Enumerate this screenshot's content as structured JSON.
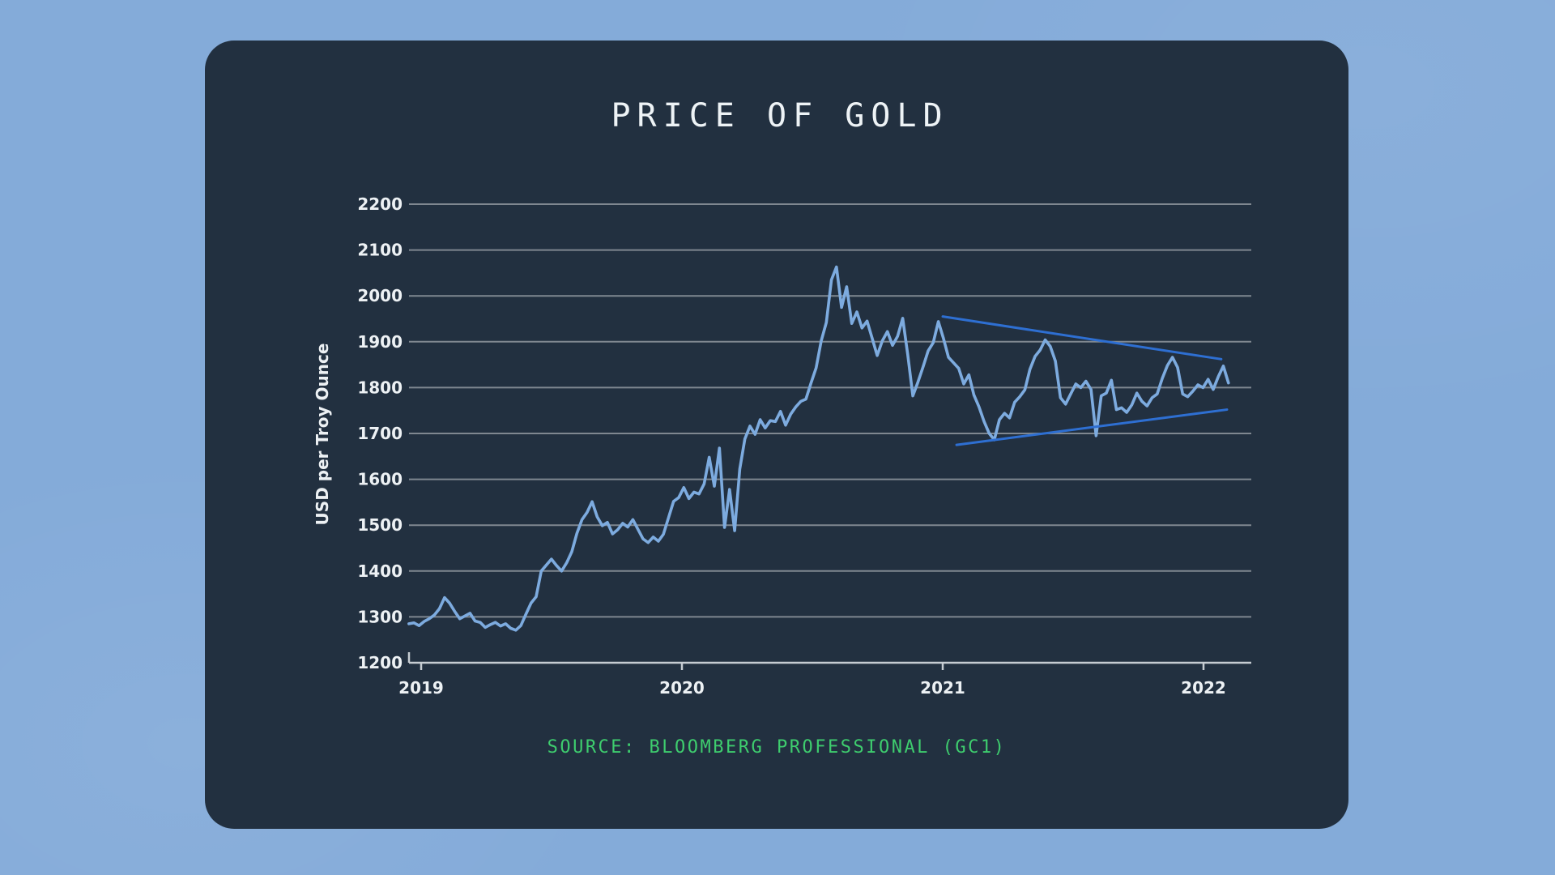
{
  "page": {
    "background_color": "#84abd9",
    "card_color": "#223040"
  },
  "header": {
    "title": "PRICE OF GOLD"
  },
  "footer": {
    "source": "SOURCE: BLOOMBERG PROFESSIONAL (GC1)"
  },
  "chart_data": {
    "type": "line",
    "title": "PRICE OF GOLD",
    "xlabel": "",
    "ylabel": "USD per Troy Ounce",
    "ylim": [
      1200,
      2200
    ],
    "xlim": [
      2018.953,
      2022.183
    ],
    "grid": true,
    "y_ticks": [
      1200,
      1300,
      1400,
      1500,
      1600,
      1700,
      1800,
      1900,
      2000,
      2100,
      2200
    ],
    "x_ticks": [
      2019,
      2020,
      2021,
      2022
    ],
    "x_start": 2018.953,
    "x_step_years": 0.01952,
    "series": [
      {
        "name": "Gold price (GC1)",
        "color": "#7dabdf",
        "values": [
          1285,
          1287,
          1281,
          1290,
          1296,
          1304,
          1318,
          1342,
          1330,
          1312,
          1296,
          1302,
          1308,
          1291,
          1288,
          1277,
          1283,
          1288,
          1280,
          1285,
          1275,
          1271,
          1281,
          1306,
          1330,
          1344,
          1400,
          1413,
          1426,
          1412,
          1400,
          1418,
          1442,
          1482,
          1512,
          1528,
          1551,
          1518,
          1499,
          1506,
          1481,
          1490,
          1504,
          1496,
          1512,
          1491,
          1470,
          1462,
          1474,
          1465,
          1480,
          1516,
          1552,
          1560,
          1582,
          1558,
          1572,
          1568,
          1590,
          1648,
          1585,
          1668,
          1495,
          1578,
          1488,
          1622,
          1688,
          1716,
          1698,
          1730,
          1712,
          1728,
          1726,
          1748,
          1718,
          1742,
          1758,
          1770,
          1775,
          1810,
          1843,
          1902,
          1942,
          2035,
          2063,
          1975,
          2020,
          1940,
          1965,
          1930,
          1945,
          1908,
          1870,
          1902,
          1922,
          1892,
          1912,
          1951,
          1872,
          1782,
          1812,
          1845,
          1880,
          1898,
          1944,
          1908,
          1866,
          1854,
          1842,
          1808,
          1828,
          1784,
          1758,
          1726,
          1700,
          1686,
          1730,
          1744,
          1734,
          1768,
          1780,
          1795,
          1840,
          1868,
          1882,
          1904,
          1890,
          1858,
          1778,
          1764,
          1786,
          1808,
          1800,
          1814,
          1796,
          1695,
          1782,
          1788,
          1816,
          1752,
          1756,
          1746,
          1762,
          1788,
          1770,
          1760,
          1778,
          1786,
          1820,
          1848,
          1866,
          1844,
          1786,
          1780,
          1792,
          1806,
          1800,
          1818,
          1796,
          1824,
          1847,
          1810
        ]
      }
    ],
    "annotations": [
      {
        "name": "trendline-upper",
        "type": "line",
        "x1": 2021.0,
        "y1": 1955,
        "x2": 2022.068,
        "y2": 1862,
        "color": "#2e6fd2"
      },
      {
        "name": "trendline-lower",
        "type": "line",
        "x1": 2021.053,
        "y1": 1675,
        "x2": 2022.09,
        "y2": 1752,
        "color": "#2e6fd2"
      }
    ],
    "colors": {
      "gridline": "#7f8790",
      "axis": "#c6ccd2",
      "tick_label": "#edf1f4"
    },
    "legend_position": "none"
  }
}
